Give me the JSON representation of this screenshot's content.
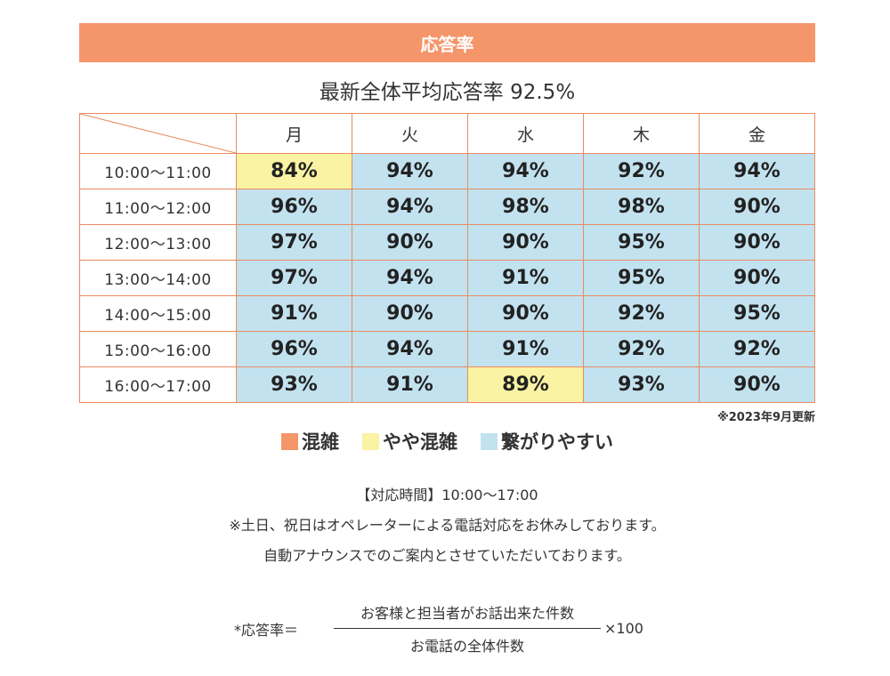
{
  "header": {
    "title": "応答率"
  },
  "summary": {
    "text": "最新全体平均応答率 92.5%"
  },
  "table": {
    "days": [
      "月",
      "火",
      "水",
      "木",
      "金"
    ],
    "rows": [
      {
        "time": "10:00〜11:00",
        "values": [
          "84%",
          "94%",
          "94%",
          "92%",
          "94%"
        ],
        "status": [
          "yaya",
          "ok",
          "ok",
          "ok",
          "ok"
        ]
      },
      {
        "time": "11:00〜12:00",
        "values": [
          "96%",
          "94%",
          "98%",
          "98%",
          "90%"
        ],
        "status": [
          "ok",
          "ok",
          "ok",
          "ok",
          "ok"
        ]
      },
      {
        "time": "12:00〜13:00",
        "values": [
          "97%",
          "90%",
          "90%",
          "95%",
          "90%"
        ],
        "status": [
          "ok",
          "ok",
          "ok",
          "ok",
          "ok"
        ]
      },
      {
        "time": "13:00〜14:00",
        "values": [
          "97%",
          "94%",
          "91%",
          "95%",
          "90%"
        ],
        "status": [
          "ok",
          "ok",
          "ok",
          "ok",
          "ok"
        ]
      },
      {
        "time": "14:00〜15:00",
        "values": [
          "91%",
          "90%",
          "90%",
          "92%",
          "95%"
        ],
        "status": [
          "ok",
          "ok",
          "ok",
          "ok",
          "ok"
        ]
      },
      {
        "time": "15:00〜16:00",
        "values": [
          "96%",
          "94%",
          "91%",
          "92%",
          "92%"
        ],
        "status": [
          "ok",
          "ok",
          "ok",
          "ok",
          "ok"
        ]
      },
      {
        "time": "16:00〜17:00",
        "values": [
          "93%",
          "91%",
          "89%",
          "93%",
          "90%"
        ],
        "status": [
          "ok",
          "ok",
          "yaya",
          "ok",
          "ok"
        ]
      }
    ]
  },
  "update_note": "※2023年9月更新",
  "legend": [
    {
      "label": "混雑",
      "color": "#f5956a"
    },
    {
      "label": "やや混雑",
      "color": "#f9f3a3"
    },
    {
      "label": "繋がりやすい",
      "color": "#c3e2ef"
    }
  ],
  "info": {
    "hours": "【対応時間】10:00〜17:00",
    "line1": "※土日、祝日はオペレーターによる電話対応をお休みしております。",
    "line2": "自動アナウンスでのご案内とさせていただいております。"
  },
  "formula": {
    "lhs": "*応答率＝",
    "numerator": "お客様と担当者がお話出来た件数",
    "denominator": "お電話の全体件数",
    "multiplier": "×100"
  }
}
